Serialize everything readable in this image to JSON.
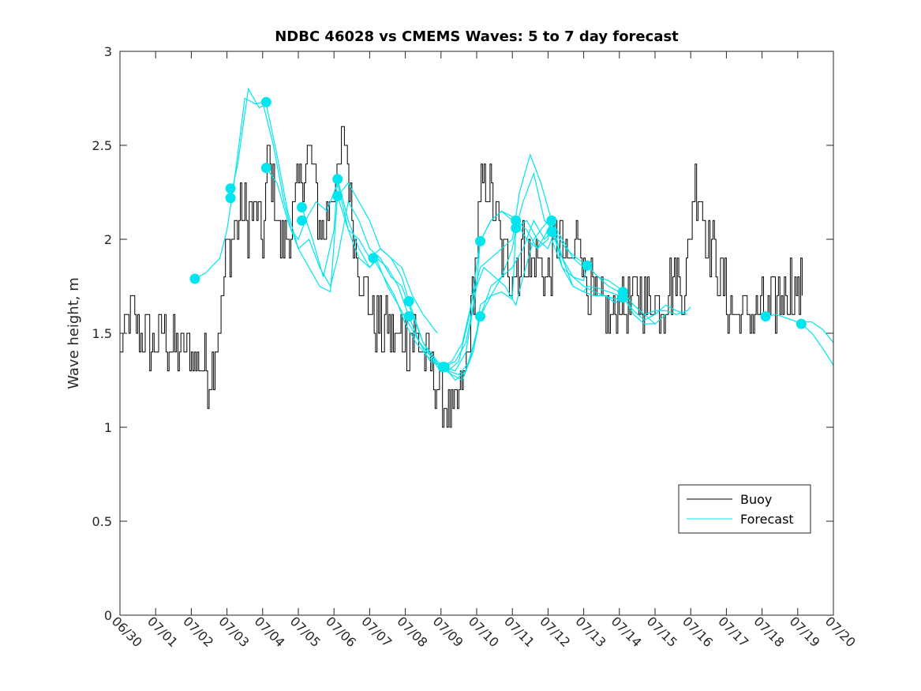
{
  "chart_data": {
    "type": "line",
    "title": "NDBC 46028 vs CMEMS Waves: 5 to 7 day forecast",
    "xlabel": "",
    "ylabel": "Wave height, m",
    "xlim": [
      "06/30",
      "07/20"
    ],
    "ylim": [
      0,
      3
    ],
    "x_ticks": [
      "06/30",
      "07/01",
      "07/02",
      "07/03",
      "07/04",
      "07/05",
      "07/06",
      "07/07",
      "07/08",
      "07/09",
      "07/10",
      "07/11",
      "07/12",
      "07/13",
      "07/14",
      "07/15",
      "07/16",
      "07/17",
      "07/18",
      "07/19",
      "07/20"
    ],
    "y_ticks": [
      0,
      0.5,
      1,
      1.5,
      2,
      2.5,
      3
    ],
    "y_tick_labels": [
      "0",
      "0.5",
      "1",
      "1.5",
      "2",
      "2.5",
      "3"
    ],
    "grid": false,
    "legend": {
      "position": "bottom-right",
      "entries": [
        "Buoy",
        "Forecast"
      ]
    },
    "colors": {
      "buoy": "#000000",
      "forecast": "#00e5ee"
    },
    "buoy": {
      "name": "Buoy",
      "anchors": [
        [
          0.0,
          1.4
        ],
        [
          0.3,
          1.6
        ],
        [
          0.5,
          1.55
        ],
        [
          0.8,
          1.45
        ],
        [
          1.0,
          1.45
        ],
        [
          1.2,
          1.5
        ],
        [
          1.4,
          1.42
        ],
        [
          1.7,
          1.43
        ],
        [
          2.0,
          1.4
        ],
        [
          2.3,
          1.35
        ],
        [
          2.5,
          1.25
        ],
        [
          2.7,
          1.5
        ],
        [
          2.9,
          1.7
        ],
        [
          3.0,
          1.95
        ],
        [
          3.2,
          2.05
        ],
        [
          3.4,
          2.15
        ],
        [
          3.6,
          2.1
        ],
        [
          3.8,
          2.15
        ],
        [
          4.0,
          2.0
        ],
        [
          4.15,
          2.45
        ],
        [
          4.3,
          2.25
        ],
        [
          4.5,
          2.0
        ],
        [
          4.7,
          2.0
        ],
        [
          4.9,
          2.15
        ],
        [
          5.1,
          2.35
        ],
        [
          5.3,
          2.45
        ],
        [
          5.5,
          2.2
        ],
        [
          5.7,
          2.0
        ],
        [
          5.9,
          2.25
        ],
        [
          6.1,
          2.3
        ],
        [
          6.3,
          2.6
        ],
        [
          6.5,
          2.1
        ],
        [
          6.7,
          1.85
        ],
        [
          6.9,
          1.7
        ],
        [
          7.1,
          1.6
        ],
        [
          7.3,
          1.5
        ],
        [
          7.5,
          1.55
        ],
        [
          7.7,
          1.45
        ],
        [
          7.9,
          1.5
        ],
        [
          8.1,
          1.45
        ],
        [
          8.3,
          1.5
        ],
        [
          8.5,
          1.4
        ],
        [
          8.7,
          1.3
        ],
        [
          8.9,
          1.25
        ],
        [
          9.1,
          1.1
        ],
        [
          9.3,
          1.05
        ],
        [
          9.5,
          1.15
        ],
        [
          9.7,
          1.3
        ],
        [
          9.9,
          1.75
        ],
        [
          10.1,
          2.2
        ],
        [
          10.3,
          2.35
        ],
        [
          10.5,
          2.15
        ],
        [
          10.7,
          1.95
        ],
        [
          10.9,
          1.85
        ],
        [
          11.1,
          1.85
        ],
        [
          11.3,
          1.95
        ],
        [
          11.5,
          1.85
        ],
        [
          11.7,
          1.9
        ],
        [
          11.9,
          1.8
        ],
        [
          12.1,
          1.9
        ],
        [
          12.3,
          2.05
        ],
        [
          12.5,
          1.85
        ],
        [
          12.7,
          1.9
        ],
        [
          12.9,
          2.1
        ],
        [
          13.0,
          1.8
        ],
        [
          13.2,
          1.7
        ],
        [
          13.4,
          1.65
        ],
        [
          13.6,
          1.6
        ],
        [
          13.8,
          1.55
        ],
        [
          14.0,
          1.7
        ],
        [
          14.2,
          1.6
        ],
        [
          14.4,
          1.7
        ],
        [
          14.6,
          1.7
        ],
        [
          14.8,
          1.65
        ],
        [
          15.0,
          1.7
        ],
        [
          15.2,
          1.65
        ],
        [
          15.4,
          1.75
        ],
        [
          15.6,
          1.8
        ],
        [
          15.8,
          1.75
        ],
        [
          16.0,
          2.05
        ],
        [
          16.1,
          2.35
        ],
        [
          16.3,
          2.2
        ],
        [
          16.5,
          2.0
        ],
        [
          16.7,
          1.9
        ],
        [
          16.9,
          1.75
        ],
        [
          17.1,
          1.65
        ],
        [
          17.3,
          1.6
        ],
        [
          17.5,
          1.6
        ],
        [
          17.7,
          1.6
        ],
        [
          17.9,
          1.62
        ],
        [
          18.1,
          1.6
        ],
        [
          18.3,
          1.65
        ],
        [
          18.5,
          1.7
        ],
        [
          18.7,
          1.75
        ],
        [
          18.9,
          1.75
        ],
        [
          19.0,
          1.72
        ],
        [
          19.15,
          1.75
        ]
      ]
    },
    "forecast_series": [
      {
        "x": [
          2.1,
          2.4,
          2.8,
          3.0,
          3.2,
          3.5,
          3.8,
          4.0,
          4.3,
          4.6,
          4.8,
          5.0,
          5.2,
          5.5,
          5.8,
          6.1,
          6.4,
          6.7,
          7.0,
          7.3,
          7.6,
          7.9,
          8.2,
          8.5,
          8.9
        ],
        "y": [
          1.79,
          1.82,
          1.9,
          2.05,
          2.3,
          2.75,
          2.72,
          2.73,
          2.5,
          2.2,
          2.05,
          2.0,
          2.1,
          2.2,
          2.15,
          2.3,
          2.05,
          2.0,
          1.9,
          1.95,
          1.9,
          1.85,
          1.7,
          1.6,
          1.5
        ]
      },
      {
        "x": [
          3.1,
          3.3,
          3.6,
          3.9,
          4.1,
          4.4,
          4.7,
          5.0,
          5.3,
          5.6,
          5.9,
          6.1,
          6.4,
          6.7,
          7.0,
          7.3,
          7.6,
          7.9,
          8.2,
          8.5,
          8.9,
          9.2,
          9.5,
          9.8,
          10.1
        ],
        "y": [
          2.22,
          2.4,
          2.8,
          2.7,
          2.72,
          2.45,
          2.15,
          1.95,
          2.0,
          1.85,
          1.75,
          1.9,
          2.2,
          2.1,
          1.95,
          1.9,
          1.8,
          1.75,
          1.6,
          1.45,
          1.35,
          1.3,
          1.28,
          1.35,
          1.59
        ]
      },
      {
        "x": [
          4.1,
          4.4,
          4.7,
          5.0,
          5.3,
          5.6,
          5.9,
          6.1,
          6.4,
          6.7,
          7.0,
          7.3,
          7.6,
          7.9,
          8.1,
          8.5,
          8.9,
          9.2,
          9.5,
          9.8,
          10.1,
          10.4,
          10.7,
          11.0,
          11.1
        ],
        "y": [
          2.38,
          2.3,
          2.1,
          1.95,
          1.85,
          1.75,
          1.72,
          2.23,
          2.3,
          2.2,
          2.1,
          1.95,
          1.9,
          1.8,
          1.67,
          1.45,
          1.32,
          1.3,
          1.35,
          1.6,
          1.99,
          2.1,
          2.15,
          2.1,
          2.1
        ]
      },
      {
        "x": [
          5.1,
          5.4,
          5.7,
          6.0,
          6.1,
          6.4,
          6.7,
          7.0,
          7.2,
          7.5,
          7.8,
          8.1,
          8.4,
          8.7,
          9.1,
          9.4,
          9.7,
          10.0,
          10.2,
          10.5,
          10.8,
          11.1,
          11.3,
          11.6,
          12.0,
          12.2
        ],
        "y": [
          2.17,
          2.0,
          1.8,
          2.05,
          2.32,
          2.1,
          1.95,
          1.85,
          1.9,
          1.85,
          1.75,
          1.59,
          1.45,
          1.38,
          1.32,
          1.3,
          1.4,
          1.75,
          1.85,
          1.8,
          1.75,
          1.65,
          1.8,
          2.0,
          2.1,
          2.05
        ]
      },
      {
        "x": [
          6.1,
          6.4,
          6.7,
          7.0,
          7.2,
          7.5,
          7.8,
          8.1,
          8.4,
          8.7,
          9.1,
          9.4,
          9.7,
          10.0,
          10.1,
          10.4,
          10.7,
          11.0,
          11.1,
          11.3,
          11.6,
          11.9,
          12.2,
          12.5,
          12.8,
          13.1
        ],
        "y": [
          2.23,
          2.05,
          1.9,
          1.85,
          1.89,
          1.75,
          1.65,
          1.55,
          1.45,
          1.35,
          1.32,
          1.25,
          1.3,
          1.5,
          1.65,
          1.7,
          1.72,
          1.68,
          2.06,
          2.2,
          2.35,
          2.1,
          2.04,
          1.95,
          1.9,
          1.86
        ]
      },
      {
        "x": [
          7.1,
          7.4,
          7.7,
          8.0,
          8.3,
          8.6,
          9.0,
          9.3,
          9.6,
          9.9,
          10.1,
          10.4,
          10.7,
          11.0,
          11.2,
          11.5,
          11.8,
          12.1,
          12.4,
          12.7,
          13.0,
          13.3,
          13.6,
          13.9,
          14.1
        ],
        "y": [
          1.9,
          1.8,
          1.7,
          1.55,
          1.45,
          1.38,
          1.32,
          1.35,
          1.45,
          1.7,
          1.85,
          1.9,
          1.95,
          2.0,
          2.25,
          2.45,
          2.3,
          2.1,
          1.85,
          1.75,
          1.72,
          1.7,
          1.7,
          1.68,
          1.72
        ]
      },
      {
        "x": [
          8.1,
          8.4,
          8.7,
          9.0,
          9.3,
          9.6,
          9.9,
          10.1,
          10.4,
          10.7,
          11.0,
          11.3,
          11.6,
          11.9,
          12.1,
          12.4,
          12.7,
          13.0,
          13.3,
          13.6,
          13.9,
          14.1,
          14.4,
          14.7,
          15.0
        ],
        "y": [
          1.59,
          1.45,
          1.38,
          1.32,
          1.28,
          1.25,
          1.4,
          1.59,
          1.75,
          1.8,
          1.85,
          1.95,
          2.1,
          2.0,
          2.04,
          1.9,
          1.8,
          1.75,
          1.72,
          1.7,
          1.66,
          1.72,
          1.65,
          1.6,
          1.55
        ]
      },
      {
        "x": [
          9.1,
          9.4,
          9.7,
          10.0,
          10.1,
          10.4,
          10.7,
          11.0,
          11.1,
          11.4,
          11.7,
          12.0,
          12.1,
          12.4,
          12.7,
          13.0,
          13.1,
          13.4,
          13.7,
          14.0,
          14.1,
          14.4,
          14.7,
          15.0,
          15.3
        ],
        "y": [
          1.32,
          1.35,
          1.45,
          1.75,
          1.99,
          2.1,
          2.15,
          2.12,
          2.1,
          2.0,
          1.95,
          2.05,
          2.1,
          2.0,
          1.9,
          1.85,
          1.86,
          1.8,
          1.75,
          1.72,
          1.7,
          1.6,
          1.55,
          1.55,
          1.6
        ]
      },
      {
        "x": [
          10.1,
          10.4,
          10.7,
          11.0,
          11.1,
          11.4,
          11.7,
          12.0,
          12.1,
          12.4,
          12.7,
          13.0,
          13.1,
          13.4,
          13.7,
          14.0,
          14.1,
          14.4,
          14.7,
          15.0,
          15.3,
          15.6,
          15.9,
          16.0
        ],
        "y": [
          1.59,
          1.7,
          1.8,
          1.95,
          2.06,
          2.1,
          2.0,
          1.95,
          2.0,
          1.85,
          1.8,
          1.78,
          1.86,
          1.8,
          1.78,
          1.74,
          1.72,
          1.65,
          1.6,
          1.62,
          1.62,
          1.6,
          1.62,
          1.64
        ]
      },
      {
        "x": [
          11.1,
          11.4,
          11.7,
          12.0,
          12.1,
          12.4,
          12.7,
          13.0,
          13.1,
          13.4,
          13.7,
          14.0,
          14.1,
          14.4,
          14.7,
          15.0,
          15.3,
          15.6,
          15.9
        ],
        "y": [
          2.1,
          2.05,
          1.95,
          2.0,
          2.1,
          1.9,
          1.75,
          1.72,
          1.75,
          1.74,
          1.72,
          1.7,
          1.69,
          1.62,
          1.57,
          1.6,
          1.65,
          1.62,
          1.6
        ]
      },
      {
        "x": [
          18.1,
          18.4,
          18.7,
          19.0,
          19.1,
          19.4,
          19.7,
          20.0
        ],
        "y": [
          1.59,
          1.6,
          1.58,
          1.56,
          1.55,
          1.5,
          1.42,
          1.33
        ]
      },
      {
        "x": [
          19.1,
          19.4,
          19.7,
          20.0
        ],
        "y": [
          1.56,
          1.56,
          1.52,
          1.45
        ]
      }
    ],
    "forecast_markers": {
      "x": [
        2.1,
        3.1,
        3.1,
        4.1,
        4.1,
        5.1,
        5.1,
        6.1,
        6.1,
        7.1,
        8.1,
        8.1,
        9.05,
        9.1,
        10.1,
        10.1,
        11.1,
        11.1,
        12.1,
        12.1,
        13.1,
        14.1,
        14.1,
        18.1,
        19.1
      ],
      "y": [
        1.79,
        2.27,
        2.22,
        2.73,
        2.38,
        2.17,
        2.1,
        2.32,
        2.23,
        1.9,
        1.67,
        1.59,
        1.32,
        1.32,
        1.99,
        1.59,
        2.1,
        2.06,
        2.1,
        2.04,
        1.86,
        1.72,
        1.69,
        1.59,
        1.55
      ]
    }
  }
}
